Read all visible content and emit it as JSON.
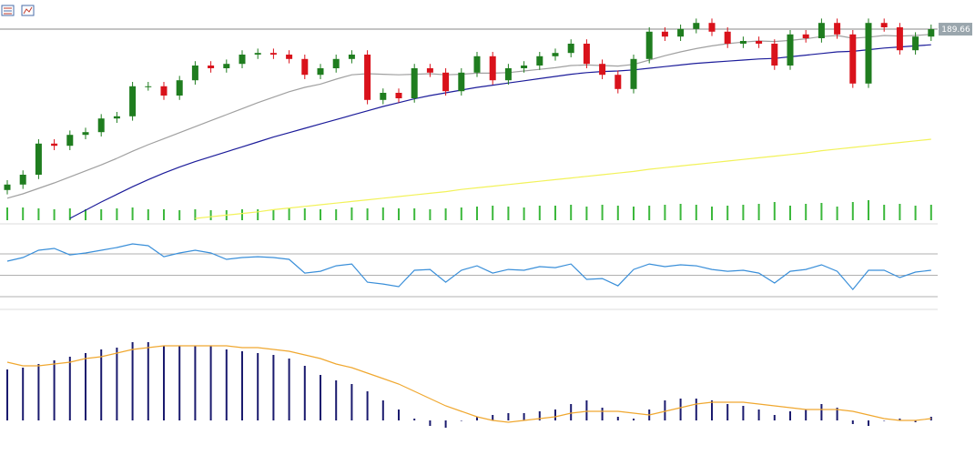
{
  "chart_data": [
    {
      "type": "candlestick",
      "open": [
        160.2,
        161.2,
        163.0,
        168.7,
        168.3,
        170.3,
        170.8,
        173.3,
        173.7,
        179.2,
        179.2,
        177.5,
        180.3,
        183.0,
        182.5,
        183.3,
        185.0,
        185.3,
        185.0,
        184.2,
        181.3,
        182.5,
        184.2,
        185.0,
        176.7,
        178.0,
        177.0,
        182.5,
        181.7,
        178.3,
        181.7,
        184.7,
        180.3,
        182.5,
        183.0,
        184.7,
        185.3,
        187.0,
        183.3,
        181.3,
        178.7,
        184.2,
        189.2,
        188.3,
        189.7,
        190.8,
        189.2,
        187.0,
        187.5,
        187.0,
        183.0,
        188.7,
        188.0,
        190.8,
        188.7,
        179.7,
        190.8,
        190.0,
        185.8,
        188.3
      ],
      "high": [
        162.0,
        163.8,
        169.5,
        169.5,
        171.1,
        171.6,
        174.1,
        174.5,
        180.0,
        180.0,
        180.0,
        181.1,
        183.8,
        183.8,
        184.1,
        185.8,
        186.1,
        186.1,
        185.8,
        185.0,
        183.3,
        185.0,
        185.8,
        185.8,
        178.8,
        178.8,
        183.3,
        183.3,
        182.5,
        182.5,
        185.5,
        185.5,
        183.3,
        183.8,
        185.5,
        186.1,
        187.8,
        187.8,
        184.1,
        182.1,
        185.0,
        190.0,
        190.0,
        190.5,
        191.6,
        191.6,
        190.0,
        188.3,
        188.3,
        187.8,
        189.5,
        189.5,
        191.6,
        191.6,
        189.5,
        191.6,
        191.6,
        190.8,
        189.1,
        190.5
      ],
      "low": [
        159.4,
        160.4,
        162.2,
        167.5,
        167.5,
        169.5,
        170.0,
        172.5,
        172.9,
        178.4,
        176.7,
        176.7,
        179.5,
        181.7,
        181.7,
        182.5,
        184.2,
        184.2,
        183.4,
        180.5,
        180.5,
        181.7,
        183.4,
        175.9,
        175.9,
        176.2,
        176.2,
        180.9,
        177.5,
        177.5,
        180.9,
        179.5,
        179.5,
        181.7,
        182.2,
        183.9,
        184.5,
        182.5,
        180.5,
        177.9,
        177.9,
        183.4,
        187.5,
        187.5,
        188.9,
        188.4,
        186.2,
        186.2,
        186.2,
        182.2,
        182.2,
        187.2,
        187.2,
        187.9,
        178.9,
        178.9,
        189.2,
        185.0,
        185.0,
        187.5
      ],
      "close": [
        161.2,
        163.0,
        168.7,
        168.3,
        170.3,
        170.8,
        173.3,
        173.7,
        179.2,
        179.2,
        177.5,
        180.3,
        183.0,
        182.5,
        183.3,
        185.0,
        185.3,
        185.0,
        184.2,
        181.3,
        182.5,
        184.2,
        185.0,
        176.7,
        178.0,
        177.0,
        182.5,
        181.7,
        178.3,
        181.7,
        184.7,
        180.3,
        182.5,
        183.0,
        184.7,
        185.3,
        187.0,
        183.3,
        181.3,
        178.7,
        184.2,
        189.2,
        188.3,
        189.7,
        190.8,
        189.2,
        187.0,
        187.5,
        187.0,
        183.0,
        188.7,
        188.0,
        190.8,
        188.7,
        179.7,
        190.8,
        190.0,
        185.8,
        188.3,
        189.66
      ],
      "up_color": "#1f7d1f",
      "down_color": "#d9121b",
      "ylim": [
        155,
        195
      ],
      "overlays": [
        {
          "color": "#a0a0a0",
          "values": [
            158.7,
            159.5,
            160.5,
            161.5,
            162.6,
            163.7,
            164.8,
            166.0,
            167.3,
            168.5,
            169.6,
            170.7,
            171.8,
            172.9,
            174.0,
            175.1,
            176.2,
            177.2,
            178.2,
            179.0,
            179.6,
            180.5,
            181.3,
            181.5,
            181.4,
            181.3,
            181.4,
            181.5,
            181.3,
            181.4,
            181.6,
            181.6,
            181.7,
            182.0,
            182.3,
            182.6,
            183.0,
            183.1,
            183.0,
            182.9,
            183.2,
            184.0,
            184.8,
            185.5,
            186.1,
            186.6,
            187.0,
            187.3,
            187.5,
            187.4,
            187.6,
            187.9,
            188.3,
            188.5,
            188.0,
            188.2,
            188.5,
            188.4,
            188.5,
            188.7
          ]
        },
        {
          "color": "#1c1c9a",
          "values": [
            null,
            null,
            null,
            null,
            155.0,
            156.5,
            158.0,
            159.4,
            160.8,
            162.1,
            163.3,
            164.4,
            165.4,
            166.3,
            167.2,
            168.1,
            169.0,
            169.9,
            170.7,
            171.5,
            172.3,
            173.1,
            173.9,
            174.7,
            175.5,
            176.2,
            176.9,
            177.5,
            178.0,
            178.5,
            179.0,
            179.4,
            179.8,
            180.2,
            180.6,
            181.0,
            181.4,
            181.7,
            181.9,
            182.0,
            182.2,
            182.5,
            182.8,
            183.1,
            183.4,
            183.6,
            183.8,
            184.0,
            184.2,
            184.3,
            184.6,
            184.9,
            185.2,
            185.5,
            185.6,
            185.9,
            186.2,
            186.4,
            186.6,
            186.8
          ]
        },
        {
          "color": "#f2f25a",
          "values": [
            null,
            null,
            null,
            null,
            null,
            null,
            null,
            null,
            null,
            null,
            null,
            null,
            155.0,
            155.3,
            155.6,
            155.9,
            156.2,
            156.6,
            156.9,
            157.2,
            157.5,
            157.8,
            158.1,
            158.4,
            158.7,
            159.0,
            159.3,
            159.6,
            159.9,
            160.3,
            160.6,
            160.9,
            161.2,
            161.5,
            161.8,
            162.1,
            162.4,
            162.7,
            163.0,
            163.3,
            163.6,
            164.0,
            164.3,
            164.6,
            164.9,
            165.2,
            165.5,
            165.8,
            166.1,
            166.4,
            166.7,
            167.0,
            167.4,
            167.7,
            168.0,
            168.3,
            168.6,
            168.9,
            169.2,
            169.5
          ]
        }
      ],
      "volume": {
        "color": "#3cb83c",
        "ylim": [
          0,
          50
        ],
        "values": [
          14,
          14,
          13,
          12,
          13,
          12,
          12,
          13,
          14,
          12,
          12,
          11,
          12,
          11,
          11,
          12,
          12,
          12,
          13,
          13,
          12,
          12,
          14,
          13,
          14,
          13,
          13,
          12,
          13,
          14,
          15,
          16,
          15,
          14,
          16,
          16,
          17,
          15,
          17,
          16,
          15,
          16,
          17,
          18,
          17,
          15,
          16,
          17,
          18,
          20,
          16,
          18,
          19,
          15,
          20,
          22,
          17,
          18,
          16,
          17
        ]
      },
      "last_price": {
        "value": 189.66,
        "label": "189.66"
      }
    },
    {
      "type": "line",
      "color": "#3a8fd9",
      "ylim": [
        20,
        85
      ],
      "levels": [
        30,
        50,
        70
      ],
      "values": [
        63.2,
        66.6,
        73.4,
        75.1,
        69.1,
        70.9,
        73.4,
        76.0,
        79.4,
        77.7,
        67.4,
        70.9,
        73.4,
        70.9,
        64.9,
        66.6,
        67.4,
        66.6,
        64.9,
        52.1,
        53.8,
        58.9,
        60.6,
        43.6,
        41.9,
        39.4,
        54.7,
        55.5,
        43.6,
        54.7,
        58.9,
        52.1,
        55.5,
        54.7,
        58.1,
        57.2,
        60.6,
        46.2,
        47.0,
        40.2,
        55.5,
        60.6,
        58.1,
        59.8,
        58.9,
        55.5,
        53.8,
        54.7,
        52.1,
        42.8,
        53.8,
        55.5,
        59.8,
        53.8,
        36.8,
        54.7,
        54.7,
        47.9,
        53.0,
        54.7
      ]
    },
    {
      "type": "macd",
      "color": "#1a1a6e",
      "ylim": [
        -1.5,
        4.5
      ],
      "values": [
        2.8,
        2.9,
        3.1,
        3.3,
        3.5,
        3.7,
        3.9,
        4.0,
        4.3,
        4.3,
        4.1,
        4.1,
        4.1,
        4.1,
        3.9,
        3.8,
        3.7,
        3.6,
        3.4,
        3.0,
        2.5,
        2.2,
        2.0,
        1.6,
        1.1,
        0.6,
        0.1,
        -0.3,
        -0.4,
        0.0,
        0.2,
        0.3,
        0.4,
        0.4,
        0.5,
        0.6,
        0.9,
        1.1,
        0.7,
        0.2,
        0.1,
        0.6,
        1.1,
        1.2,
        1.2,
        1.1,
        0.9,
        0.8,
        0.6,
        0.3,
        0.5,
        0.6,
        0.9,
        0.7,
        -0.2,
        -0.3,
        0.0,
        0.1,
        -0.1,
        0.2
      ],
      "signal": {
        "color": "#f0a830",
        "values": [
          3.2,
          3.0,
          3.0,
          3.1,
          3.2,
          3.4,
          3.5,
          3.7,
          3.9,
          4.0,
          4.1,
          4.1,
          4.1,
          4.1,
          4.1,
          4.0,
          4.0,
          3.9,
          3.8,
          3.6,
          3.4,
          3.1,
          2.9,
          2.6,
          2.3,
          2.0,
          1.6,
          1.2,
          0.8,
          0.5,
          0.2,
          0.0,
          -0.1,
          0.0,
          0.1,
          0.2,
          0.4,
          0.5,
          0.5,
          0.5,
          0.4,
          0.3,
          0.5,
          0.7,
          0.9,
          1.0,
          1.0,
          1.0,
          0.9,
          0.8,
          0.7,
          0.6,
          0.6,
          0.6,
          0.5,
          0.3,
          0.1,
          0.0,
          0.0,
          0.1
        ]
      }
    }
  ]
}
